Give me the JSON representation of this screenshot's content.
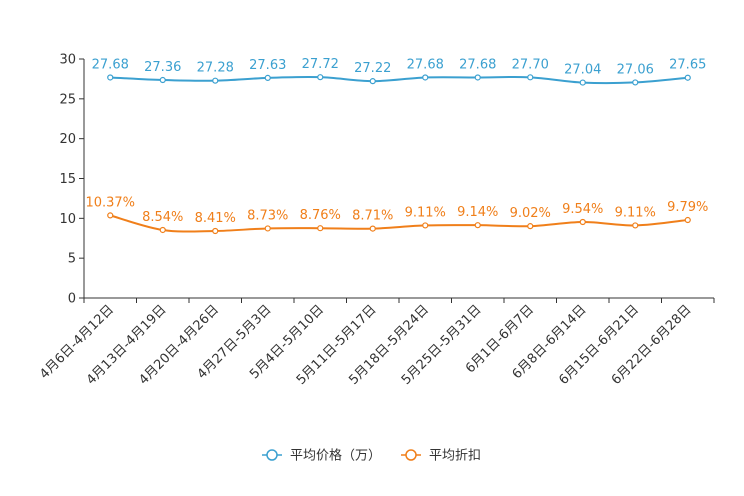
{
  "chart_data": {
    "type": "line",
    "title": "",
    "xlabel": "",
    "ylabel": "",
    "ylim": [
      0,
      30
    ],
    "yticks": [
      0,
      5,
      10,
      15,
      20,
      25,
      30
    ],
    "categories": [
      "4月6日-4月12日",
      "4月13日-4月19日",
      "4月20日-4月26日",
      "4月27日-5月3日",
      "5月4日-5月10日",
      "5月11日-5月17日",
      "5月18日-5月24日",
      "5月25日-5月31日",
      "6月1日-6月7日",
      "6月8日-6月14日",
      "6月15日-6月21日",
      "6月22日-6月28日"
    ],
    "series": [
      {
        "name": "平均价格（万）",
        "color": "#3ba0d0",
        "values": [
          27.68,
          27.36,
          27.28,
          27.63,
          27.72,
          27.22,
          27.68,
          27.68,
          27.7,
          27.04,
          27.06,
          27.65
        ],
        "labels": [
          "27.68",
          "27.36",
          "27.28",
          "27.63",
          "27.72",
          "27.22",
          "27.68",
          "27.68",
          "27.70",
          "27.04",
          "27.06",
          "27.65"
        ]
      },
      {
        "name": "平均折扣",
        "color": "#f07f1a",
        "values": [
          10.37,
          8.54,
          8.41,
          8.73,
          8.76,
          8.71,
          9.11,
          9.14,
          9.02,
          9.54,
          9.11,
          9.79
        ],
        "labels": [
          "10.37%",
          "8.54%",
          "8.41%",
          "8.73%",
          "8.76%",
          "8.71%",
          "9.11%",
          "9.14%",
          "9.02%",
          "9.54%",
          "9.11%",
          "9.79%"
        ]
      }
    ],
    "legend": {
      "position": "bottom-center"
    },
    "grid": false
  }
}
